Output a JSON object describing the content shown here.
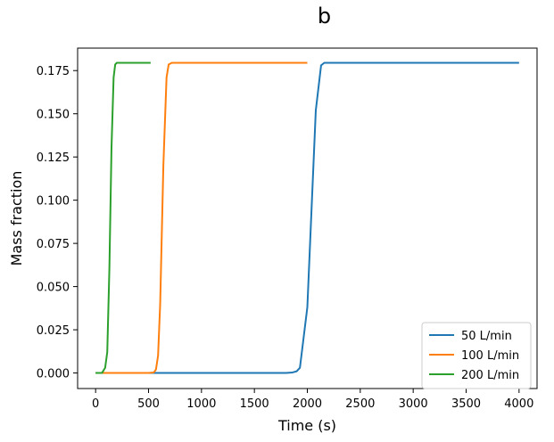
{
  "panel_label": "b",
  "chart_data": {
    "type": "line",
    "title": "",
    "xlabel": "Time (s)",
    "ylabel": "Mass fraction",
    "xlim": [
      -170,
      4170
    ],
    "ylim": [
      -0.009,
      0.188
    ],
    "xticks": [
      0,
      500,
      1000,
      1500,
      2000,
      2500,
      3000,
      3500,
      4000
    ],
    "yticks": [
      0.0,
      0.025,
      0.05,
      0.075,
      0.1,
      0.125,
      0.15,
      0.175
    ],
    "ytick_labels": [
      "0.000",
      "0.025",
      "0.050",
      "0.075",
      "0.100",
      "0.125",
      "0.150",
      "0.175"
    ],
    "legend_position": "lower-right",
    "series": [
      {
        "name": "50 L/min",
        "color": "#1f77b4",
        "x": [
          0,
          500,
          1000,
          1500,
          1800,
          1860,
          1900,
          1930,
          2000,
          2080,
          2130,
          2160,
          2200,
          2500,
          3000,
          3500,
          4000
        ],
        "y": [
          0.0,
          0.0,
          0.0,
          0.0,
          0.0,
          0.0003,
          0.001,
          0.003,
          0.038,
          0.152,
          0.178,
          0.1795,
          0.1795,
          0.1795,
          0.1795,
          0.1795,
          0.1795
        ]
      },
      {
        "name": "100 L/min",
        "color": "#ff7f0e",
        "x": [
          0,
          300,
          500,
          550,
          570,
          590,
          610,
          640,
          670,
          690,
          720,
          1000,
          1500,
          2000
        ],
        "y": [
          0.0,
          0.0,
          0.0,
          0.0003,
          0.002,
          0.01,
          0.04,
          0.12,
          0.171,
          0.1785,
          0.1795,
          0.1795,
          0.1795,
          0.1795
        ]
      },
      {
        "name": "200 L/min",
        "color": "#2ca02c",
        "x": [
          0,
          60,
          90,
          110,
          130,
          150,
          170,
          185,
          200,
          230,
          300,
          400,
          520
        ],
        "y": [
          0.0,
          0.0,
          0.003,
          0.012,
          0.06,
          0.13,
          0.171,
          0.1785,
          0.1795,
          0.1795,
          0.1795,
          0.1795,
          0.1795
        ]
      }
    ]
  }
}
